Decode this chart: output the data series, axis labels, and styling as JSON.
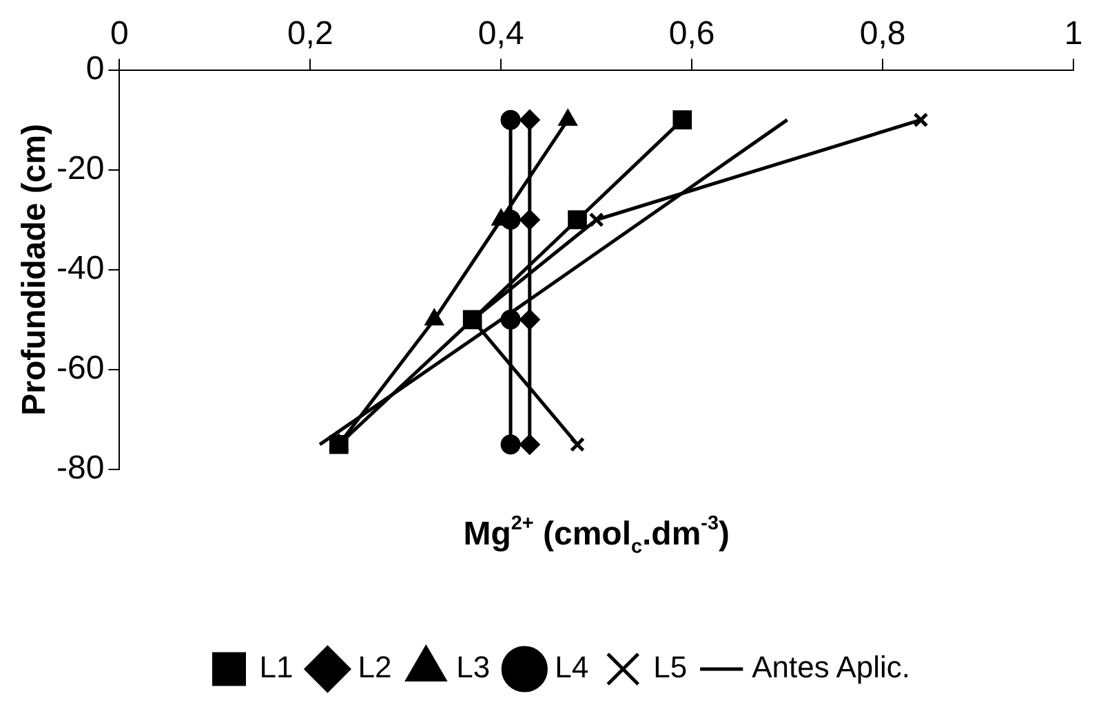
{
  "chart_data": {
    "type": "line",
    "xlabel": "Mg$^{2+}$ (cmol$_{c}$.dm$^{-3}$)",
    "ylabel": "Profundidade (cm)",
    "xlim": [
      0,
      1
    ],
    "xticks": [
      0,
      {
        "value": 0.2,
        "label": "0,2"
      },
      {
        "value": 0.4,
        "label": "0,4"
      },
      {
        "value": 0.6,
        "label": "0,6"
      },
      {
        "value": 0.8,
        "label": "0,8"
      },
      1
    ],
    "ylim": [
      -80,
      0
    ],
    "yticks": [
      0,
      -20,
      -40,
      -60,
      -80
    ],
    "grid": false,
    "legend": "bottom",
    "line_style": "solid",
    "series": [
      {
        "name": "L1",
        "color": "#000000",
        "marker": "square",
        "x": [
          0.59,
          0.48,
          0.37,
          0.23
        ],
        "values": [
          -10,
          -30,
          -50,
          -75
        ]
      },
      {
        "name": "L2",
        "color": "#000000",
        "marker": "diamond",
        "x": [
          0.43,
          0.43,
          0.43,
          0.43
        ],
        "values": [
          -10,
          -30,
          -50,
          -75
        ]
      },
      {
        "name": "L3",
        "color": "#000000",
        "marker": "triangle",
        "x": [
          0.47,
          0.4,
          0.33,
          0.23
        ],
        "values": [
          -10,
          -30,
          -50,
          -75
        ]
      },
      {
        "name": "L4",
        "color": "#000000",
        "marker": "circle",
        "x": [
          0.41,
          0.41,
          0.41,
          0.41
        ],
        "values": [
          -10,
          -30,
          -50,
          -75
        ]
      },
      {
        "name": "L5",
        "color": "#000000",
        "marker": "cross",
        "x": [
          0.84,
          0.5,
          0.37,
          0.48
        ],
        "values": [
          -10,
          -30,
          -50,
          -75
        ]
      },
      {
        "name": "Antes Aplic.",
        "color": "#000000",
        "marker": "none",
        "x": [
          0.7,
          0.55,
          0.4,
          0.21
        ],
        "values": [
          -10,
          -30,
          -50,
          -75
        ]
      }
    ]
  }
}
